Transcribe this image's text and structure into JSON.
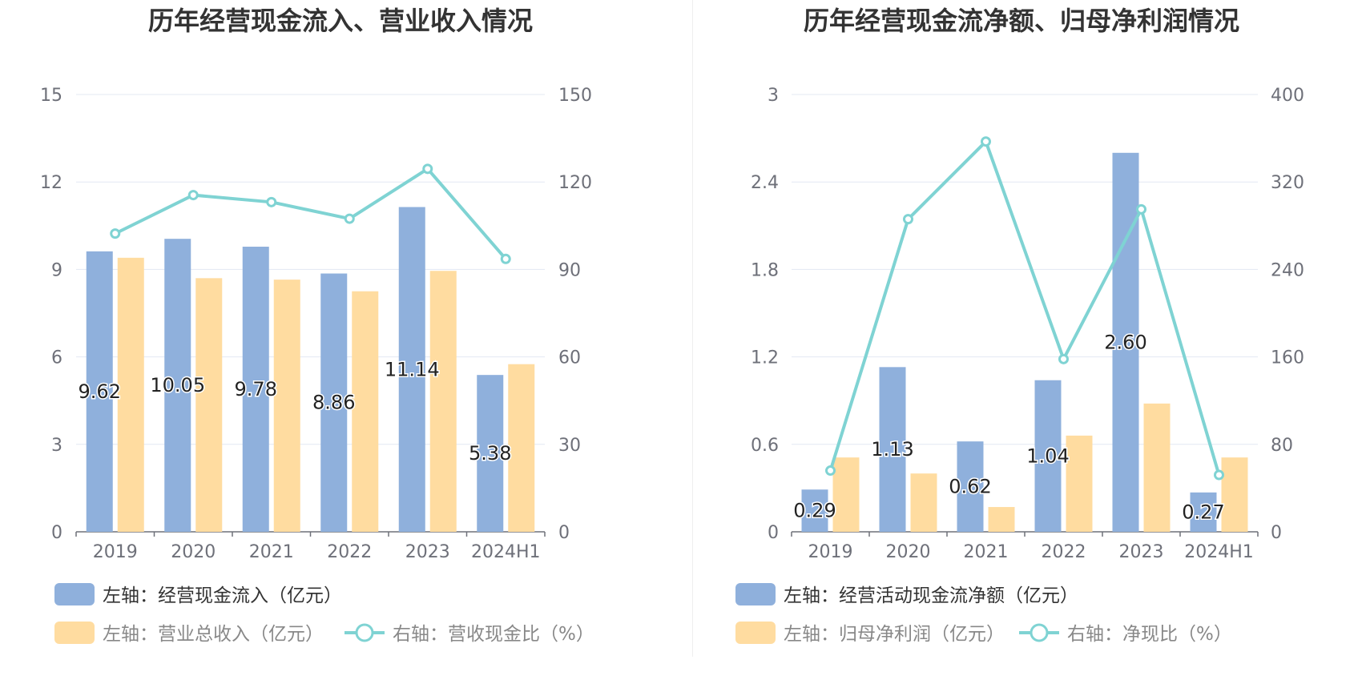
{
  "left": {
    "title": "历年经营现金流入、营业收入情况",
    "legend": {
      "bar1": "左轴：经营现金流入（亿元）",
      "bar2": "左轴：营业总收入（亿元）",
      "line": "右轴：营收现金比（%）"
    }
  },
  "right": {
    "title": "历年经营现金流净额、归母净利润情况",
    "legend": {
      "bar1": "左轴：经营活动现金流净额（亿元）",
      "bar2": "左轴：归母净利润（亿元）",
      "line": "右轴：净现比（%）"
    }
  },
  "colors": {
    "bar1": "#8fb0dc",
    "bar2": "#ffdca0",
    "line": "#7fd3d3",
    "grid": "#e3e8f3"
  },
  "chart_data": [
    {
      "type": "bar",
      "title": "历年经营现金流入、营业收入情况",
      "categories": [
        "2019",
        "2020",
        "2021",
        "2022",
        "2023",
        "2024H1"
      ],
      "yLeft": {
        "min": 0,
        "max": 15,
        "ticks": [
          "0",
          "3",
          "6",
          "9",
          "12",
          "15"
        ]
      },
      "yRight": {
        "min": 0,
        "max": 150,
        "ticks": [
          "0",
          "30",
          "60",
          "90",
          "120",
          "150"
        ]
      },
      "series": [
        {
          "name": "左轴：经营现金流入（亿元）",
          "type": "bar",
          "axis": "left",
          "values": [
            9.62,
            10.05,
            9.78,
            8.86,
            11.14,
            5.38
          ],
          "labels": [
            "9.62",
            "10.05",
            "9.78",
            "8.86",
            "11.14",
            "5.38"
          ]
        },
        {
          "name": "左轴：营业总收入（亿元）",
          "type": "bar",
          "axis": "left",
          "values": [
            9.4,
            8.7,
            8.65,
            8.25,
            8.95,
            5.75
          ]
        },
        {
          "name": "右轴：营收现金比（%）",
          "type": "line",
          "axis": "right",
          "values": [
            102.3,
            115.5,
            113.1,
            107.4,
            124.5,
            93.6
          ]
        }
      ]
    },
    {
      "type": "bar",
      "title": "历年经营现金流净额、归母净利润情况",
      "categories": [
        "2019",
        "2020",
        "2021",
        "2022",
        "2023",
        "2024H1"
      ],
      "yLeft": {
        "min": 0,
        "max": 3,
        "ticks": [
          "0",
          "0.6",
          "1.2",
          "1.8",
          "2.4",
          "3"
        ]
      },
      "yRight": {
        "min": 0,
        "max": 400,
        "ticks": [
          "0",
          "80",
          "160",
          "240",
          "320",
          "400"
        ]
      },
      "series": [
        {
          "name": "左轴：经营活动现金流净额（亿元）",
          "type": "bar",
          "axis": "left",
          "values": [
            0.29,
            1.13,
            0.62,
            1.04,
            2.6,
            0.27
          ],
          "labels": [
            "0.29",
            "1.13",
            "0.62",
            "1.04",
            "2.60",
            "0.27"
          ]
        },
        {
          "name": "左轴：归母净利润（亿元）",
          "type": "bar",
          "axis": "left",
          "values": [
            0.51,
            0.4,
            0.17,
            0.66,
            0.88,
            0.51
          ]
        },
        {
          "name": "右轴：净现比（%）",
          "type": "line",
          "axis": "right",
          "values": [
            56,
            286,
            357,
            158,
            295,
            52
          ]
        }
      ]
    }
  ]
}
